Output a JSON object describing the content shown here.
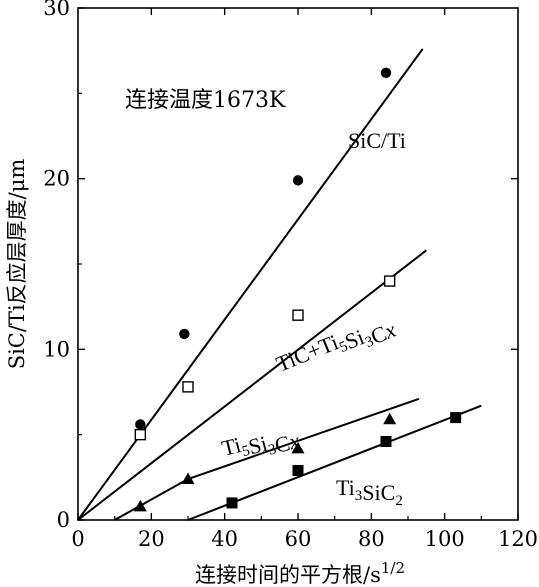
{
  "chart_data": {
    "type": "scatter",
    "xlabel": "连接时间的平方根/s",
    "xlabel_sup": "1/2",
    "ylabel": "SiC/Ti反应层厚度/μm",
    "xlim": [
      0,
      120
    ],
    "ylim": [
      0,
      30
    ],
    "x_ticks": [
      0,
      20,
      40,
      60,
      80,
      100,
      120
    ],
    "y_ticks": [
      0,
      10,
      20,
      30
    ],
    "grid": false,
    "annotations": [
      {
        "text": "连接温度1673K"
      }
    ],
    "series": [
      {
        "name": "SiC/Ti",
        "label_parts": [
          {
            "t": "SiC/Ti",
            "sub": ""
          }
        ],
        "marker": "filled-circle",
        "points": [
          [
            17,
            5.6
          ],
          [
            29,
            10.9
          ],
          [
            60,
            19.9
          ],
          [
            84,
            26.2
          ]
        ],
        "fit": [
          [
            0,
            0
          ],
          [
            94,
            27.6
          ]
        ]
      },
      {
        "name": "TiC+Ti5Si3Cx",
        "label_parts": [
          {
            "t": "TiC+Ti",
            "sub": "5"
          },
          {
            "t": "Si",
            "sub": "3"
          },
          {
            "t": "C",
            "sub": ""
          },
          {
            "t": "x",
            "sub": "",
            "italic": true
          }
        ],
        "marker": "open-square",
        "points": [
          [
            17,
            5.0
          ],
          [
            30,
            7.8
          ],
          [
            60,
            12.0
          ],
          [
            85,
            14.0
          ]
        ],
        "fit": [
          [
            0,
            0
          ],
          [
            95,
            15.8
          ]
        ]
      },
      {
        "name": "Ti5Si3Cx",
        "label_parts": [
          {
            "t": "Ti",
            "sub": "5"
          },
          {
            "t": "Si",
            "sub": "3"
          },
          {
            "t": "C",
            "sub": ""
          },
          {
            "t": "x",
            "sub": "",
            "italic": true
          }
        ],
        "marker": "filled-triangle",
        "points": [
          [
            17,
            0.8
          ],
          [
            30,
            2.4
          ],
          [
            60,
            4.2
          ],
          [
            85,
            5.9
          ]
        ],
        "fit": [
          [
            10,
            0
          ],
          [
            30,
            2.4
          ],
          [
            93,
            7.1
          ]
        ]
      },
      {
        "name": "Ti3SiC2",
        "label_parts": [
          {
            "t": "Ti",
            "sub": "3"
          },
          {
            "t": "SiC",
            "sub": "2"
          }
        ],
        "marker": "filled-square",
        "points": [
          [
            42,
            1.0
          ],
          [
            60,
            2.9
          ],
          [
            84,
            4.6
          ],
          [
            103,
            6.0
          ]
        ],
        "fit": [
          [
            30,
            0
          ],
          [
            110,
            6.7
          ]
        ]
      }
    ]
  }
}
